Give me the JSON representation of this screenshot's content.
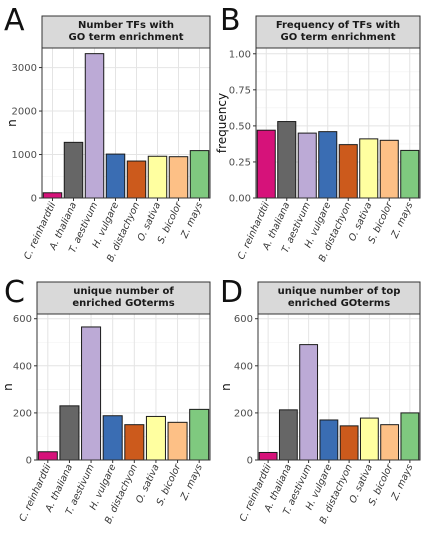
{
  "chart_data": [
    {
      "panel": "A",
      "type": "bar",
      "title": "Number TFs with GO term enrichment",
      "title_lines": [
        "Number TFs with",
        "GO term enrichment"
      ],
      "ylabel": "n",
      "ylim": [
        0,
        3450
      ],
      "yticks": [
        0,
        1000,
        2000,
        3000
      ],
      "yticklabels": [
        "0",
        "1000",
        "2000",
        "3000"
      ],
      "categories": [
        "C. reinhardtii",
        "A. thaliana",
        "T. aestivum",
        "H. vulgare",
        "B. distachyon",
        "O. sativa",
        "S. bicolor",
        "Z. mays"
      ],
      "values": [
        120,
        1280,
        3320,
        1010,
        850,
        960,
        950,
        1090
      ],
      "colors": [
        "#d6127a",
        "#666666",
        "#bcaad6",
        "#3a6db3",
        "#cc5a1c",
        "#ffffa0",
        "#fdc086",
        "#7fc97f"
      ],
      "grid": true
    },
    {
      "panel": "B",
      "type": "bar",
      "title": "Frequency of TFs with GO term enrichment",
      "title_lines": [
        "Frequency of TFs with",
        "GO term enrichment"
      ],
      "ylabel": "frequency",
      "ylim": [
        0,
        1.04
      ],
      "yticks": [
        0,
        0.25,
        0.5,
        0.75,
        1.0
      ],
      "yticklabels": [
        "0.00",
        "0.25",
        "0.50",
        "0.75",
        "1.00"
      ],
      "categories": [
        "C. reinhardtii",
        "A. thaliana",
        "T. aestivum",
        "H. vulgare",
        "B. distachyon",
        "O. sativa",
        "S. bicolor",
        "Z. mays"
      ],
      "values": [
        0.47,
        0.53,
        0.45,
        0.46,
        0.37,
        0.41,
        0.4,
        0.33
      ],
      "colors": [
        "#d6127a",
        "#666666",
        "#bcaad6",
        "#3a6db3",
        "#cc5a1c",
        "#ffffa0",
        "#fdc086",
        "#7fc97f"
      ],
      "grid": true
    },
    {
      "panel": "C",
      "type": "bar",
      "title": "unique number of enriched GOterms",
      "title_lines": [
        "unique number of",
        "enriched GOterms"
      ],
      "ylabel": "n",
      "ylim": [
        0,
        620
      ],
      "yticks": [
        0,
        200,
        400,
        600
      ],
      "yticklabels": [
        "0",
        "200",
        "400",
        "600"
      ],
      "categories": [
        "C. reinhardtii",
        "A. thaliana",
        "T. aestivum",
        "H. vulgare",
        "B. distachyon",
        "O. sativa",
        "S. bicolor",
        "Z. mays"
      ],
      "values": [
        35,
        230,
        565,
        188,
        150,
        185,
        160,
        215
      ],
      "colors": [
        "#d6127a",
        "#666666",
        "#bcaad6",
        "#3a6db3",
        "#cc5a1c",
        "#ffffa0",
        "#fdc086",
        "#7fc97f"
      ],
      "grid": true
    },
    {
      "panel": "D",
      "type": "bar",
      "title": "unique number of top enriched GOterms",
      "title_lines": [
        "unique number of top",
        "enriched GOterms"
      ],
      "ylabel": "n",
      "ylim": [
        0,
        620
      ],
      "yticks": [
        0,
        200,
        400,
        600
      ],
      "yticklabels": [
        "0",
        "200",
        "400",
        "600"
      ],
      "categories": [
        "C. reinhardtii",
        "A. thaliana",
        "T. aestivum",
        "H. vulgare",
        "B. distachyon",
        "O. sativa",
        "S. bicolor",
        "Z. mays"
      ],
      "values": [
        32,
        213,
        490,
        170,
        145,
        178,
        150,
        200
      ],
      "colors": [
        "#d6127a",
        "#666666",
        "#bcaad6",
        "#3a6db3",
        "#cc5a1c",
        "#ffffa0",
        "#fdc086",
        "#7fc97f"
      ],
      "grid": true
    }
  ]
}
